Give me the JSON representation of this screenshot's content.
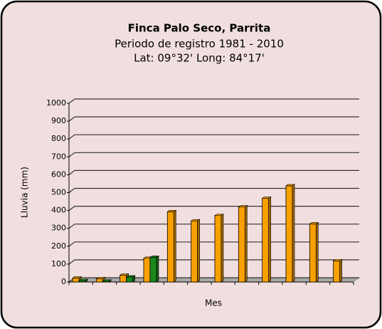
{
  "chart_data": {
    "type": "bar",
    "title": "Finca Palo Seco, Parrita",
    "subtitle": "Periodo de registro 1981 - 2010",
    "annotation": "Lat: 09°32' Long: 84°17'",
    "x_label": "Mes",
    "y_label": "Lluvia (mm)",
    "categories": [
      null,
      null,
      null,
      null,
      null,
      null,
      null,
      null,
      null,
      null,
      null,
      null
    ],
    "series": [
      {
        "color": "#f7a000",
        "values": [
          22,
          18,
          38,
          133,
          393,
          342,
          372,
          420,
          468,
          538,
          325,
          118
        ]
      },
      {
        "color": "#1a8a1a",
        "values": [
          8,
          5,
          28,
          138,
          null,
          null,
          null,
          null,
          null,
          null,
          null,
          null
        ]
      }
    ],
    "ylim": [
      0,
      1000
    ],
    "yticks": [
      0,
      100,
      200,
      300,
      400,
      500,
      600,
      700,
      800,
      900,
      1000
    ],
    "grid": true
  }
}
